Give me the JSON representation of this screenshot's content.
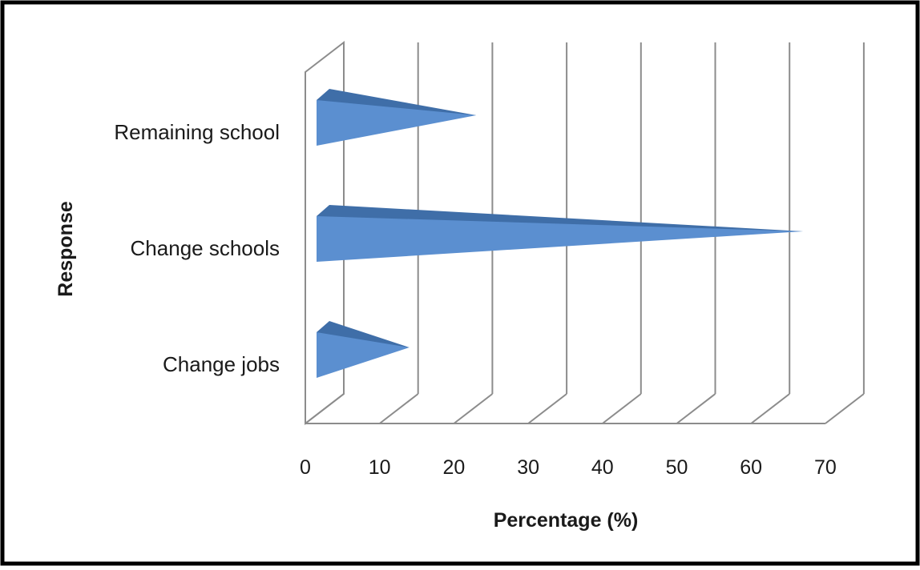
{
  "chart_data": {
    "type": "bar",
    "orientation": "horizontal",
    "style": "3d-cone",
    "categories": [
      "Remaining school",
      "Change schools",
      "Change jobs"
    ],
    "values": [
      23,
      67,
      14
    ],
    "xlabel": "Percentage (%)",
    "ylabel": "Response",
    "xlim": [
      0,
      70
    ],
    "xticks": [
      "0",
      "10",
      "20",
      "30",
      "40",
      "50",
      "60",
      "70"
    ],
    "grid": true,
    "legend": "none"
  },
  "colors": {
    "bar_face": "#5b8fd0",
    "bar_top": "#3f6ea8",
    "grid": "#8c8c8c",
    "frame": "#000000",
    "text": "#1a1a1a"
  }
}
